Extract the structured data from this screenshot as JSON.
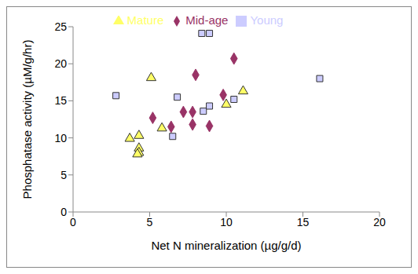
{
  "chart_data": {
    "type": "scatter",
    "x_label": "Net N mineralization (µg/g/d)",
    "y_label": "Phosphatase activity (µM/g/hr)",
    "xlim": [
      0,
      20
    ],
    "xticks": [
      0,
      5,
      10,
      15,
      20
    ],
    "ylim": [
      0,
      25
    ],
    "yticks": [
      0,
      5,
      10,
      15,
      20,
      25
    ],
    "grid": false,
    "legend": "top",
    "series": [
      {
        "name": "Mid-age",
        "color": "#993366",
        "marker": "diamond",
        "x": [
          5.2,
          6.4,
          7.2,
          7.8,
          7.8,
          8.0,
          8.9,
          9.8,
          10.5
        ],
        "values": [
          12.7,
          11.5,
          13.5,
          13.5,
          11.8,
          18.5,
          11.6,
          15.8,
          20.7
        ]
      },
      {
        "name": "Young",
        "color": "#ccccff",
        "marker": "square",
        "x": [
          2.8,
          6.5,
          6.8,
          8.4,
          8.9,
          8.5,
          8.9,
          10.5,
          16.1
        ],
        "values": [
          15.7,
          10.2,
          15.5,
          24.1,
          24.1,
          13.6,
          14.3,
          15.2,
          18.0
        ]
      },
      {
        "name": "Mature",
        "color": "#ffff66",
        "marker": "triangle",
        "x": [
          3.7,
          4.3,
          4.3,
          4.3,
          4.2,
          5.1,
          5.8,
          10.0,
          11.1
        ],
        "values": [
          9.9,
          10.3,
          8.6,
          8.0,
          7.8,
          18.1,
          11.3,
          14.5,
          16.3
        ]
      }
    ]
  }
}
